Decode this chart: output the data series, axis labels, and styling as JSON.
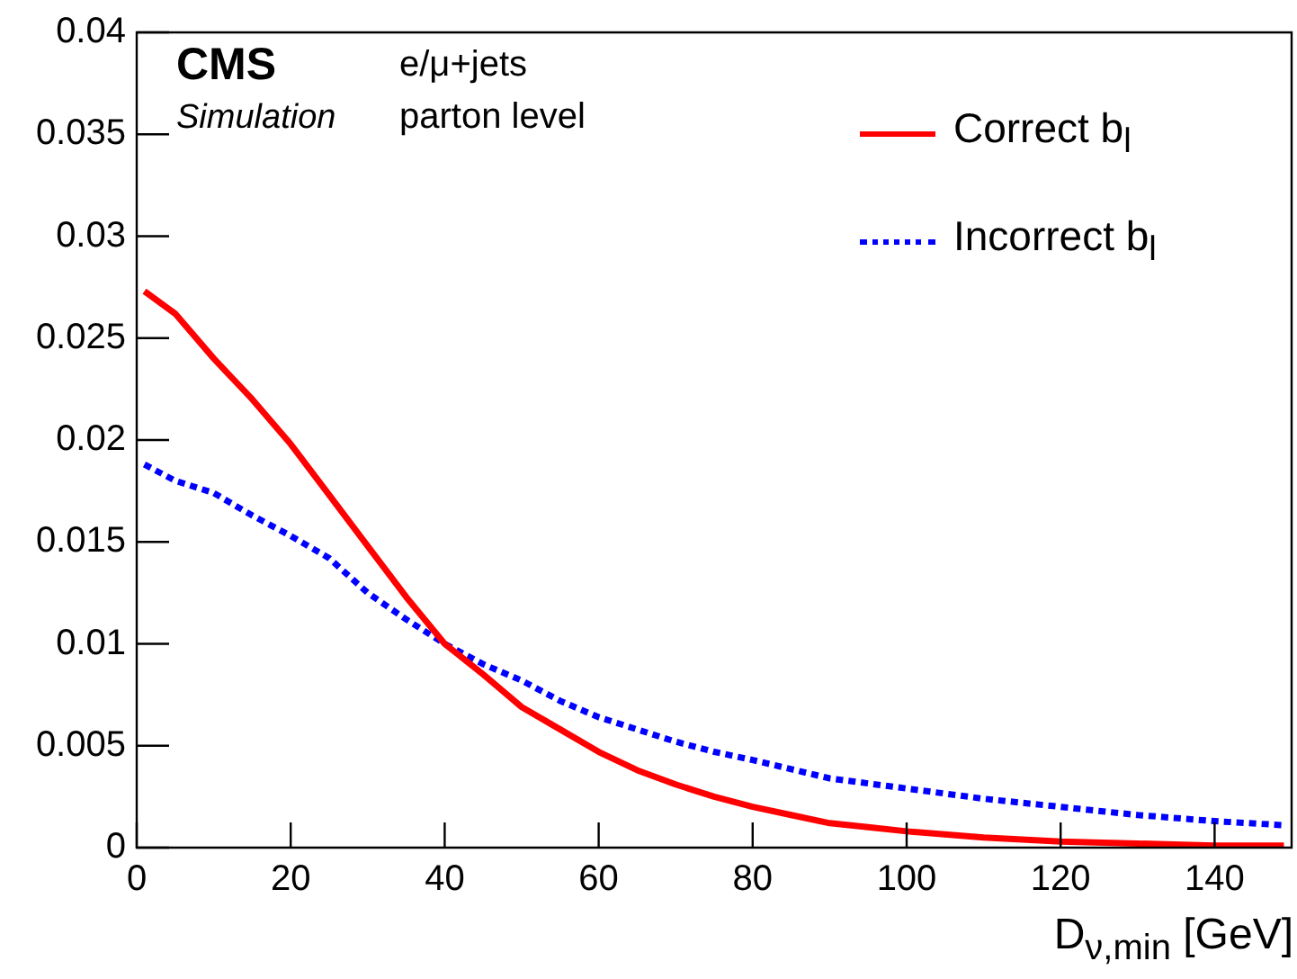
{
  "chart_data": {
    "type": "line",
    "xlabel": "D$_{ν,min}$ [GeV]",
    "annotations": [
      "CMS",
      "Simulation",
      "e/μ+jets",
      "parton level"
    ],
    "x": [
      1,
      5,
      10,
      15,
      20,
      25,
      30,
      35,
      40,
      45,
      50,
      55,
      60,
      65,
      70,
      75,
      80,
      85,
      90,
      95,
      100,
      110,
      120,
      130,
      140,
      149
    ],
    "series": [
      {
        "name": "Correct b$_{l}$",
        "color": "#ff0000",
        "line_style": "solid",
        "values": [
          0.0273,
          0.0262,
          0.024,
          0.022,
          0.0198,
          0.0173,
          0.0148,
          0.0123,
          0.01,
          0.0085,
          0.0069,
          0.0058,
          0.0047,
          0.0038,
          0.0031,
          0.0025,
          0.002,
          0.0016,
          0.0012,
          0.001,
          0.0008,
          0.0005,
          0.0003,
          0.0002,
          0.0001,
          0.0001
        ]
      },
      {
        "name": "Incorrect b$_{l}$",
        "color": "#0000ff",
        "line_style": "dotted",
        "x": [
          1,
          5,
          10,
          15,
          20,
          25,
          30,
          35,
          40,
          45,
          50,
          55,
          60,
          65,
          70,
          75,
          80,
          90,
          100,
          110,
          120,
          130,
          140,
          149
        ],
        "values": [
          0.0188,
          0.018,
          0.0174,
          0.0163,
          0.0153,
          0.0142,
          0.0125,
          0.0112,
          0.01,
          0.009,
          0.0082,
          0.0072,
          0.0064,
          0.0058,
          0.0052,
          0.0047,
          0.0043,
          0.0034,
          0.0029,
          0.0024,
          0.002,
          0.0016,
          0.0013,
          0.0011
        ]
      }
    ],
    "xlim": [
      0,
      150
    ],
    "xticks": [
      0,
      20,
      40,
      60,
      80,
      100,
      120,
      140
    ],
    "ylim": [
      0,
      0.04
    ],
    "yticks": [
      0,
      0.005,
      0.01,
      0.015,
      0.02,
      0.025,
      0.03,
      0.035,
      0.04
    ],
    "grid": false,
    "legend": "top right",
    "marker": "none"
  }
}
